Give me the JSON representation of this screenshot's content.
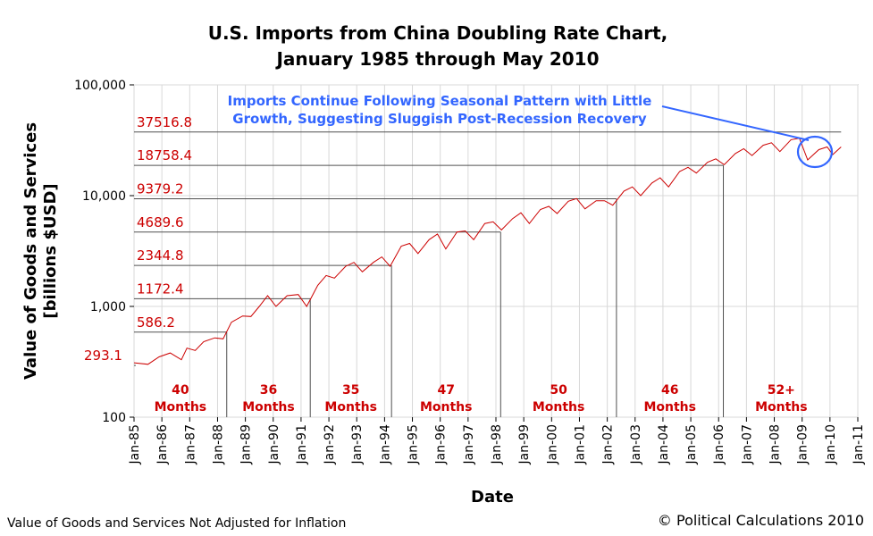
{
  "chart_data": {
    "type": "line",
    "title": "U.S. Imports from China Doubling Rate Chart,",
    "subtitle": "January 1985 through May 2010",
    "xlabel": "Date",
    "ylabel": "Value of Goods and Services",
    "ylabel2": "[billions $USD]",
    "yscale": "log",
    "ylim": [
      100,
      100000
    ],
    "xlim": [
      "Jan-85",
      "Jan-11"
    ],
    "yticks": [
      "100",
      "1,000",
      "10,000",
      "100,000"
    ],
    "ytick_values": [
      100,
      1000,
      10000,
      100000
    ],
    "xticks": [
      "Jan-85",
      "Jan-86",
      "Jan-87",
      "Jan-88",
      "Jan-89",
      "Jan-90",
      "Jan-91",
      "Jan-92",
      "Jan-93",
      "Jan-94",
      "Jan-95",
      "Jan-96",
      "Jan-97",
      "Jan-98",
      "Jan-99",
      "Jan-00",
      "Jan-01",
      "Jan-02",
      "Jan-03",
      "Jan-04",
      "Jan-05",
      "Jan-06",
      "Jan-07",
      "Jan-08",
      "Jan-09",
      "Jan-10",
      "Jan-11"
    ],
    "grid": true,
    "series": [
      {
        "name": "U.S. Imports from China",
        "color": "#cc0000",
        "points": [
          [
            1985.0,
            310
          ],
          [
            1985.5,
            300
          ],
          [
            1985.9,
            350
          ],
          [
            1986.3,
            380
          ],
          [
            1986.7,
            330
          ],
          [
            1986.9,
            420
          ],
          [
            1987.2,
            400
          ],
          [
            1987.5,
            480
          ],
          [
            1987.9,
            520
          ],
          [
            1988.2,
            510
          ],
          [
            1988.5,
            720
          ],
          [
            1988.9,
            820
          ],
          [
            1989.2,
            810
          ],
          [
            1989.5,
            1000
          ],
          [
            1989.8,
            1250
          ],
          [
            1990.1,
            1000
          ],
          [
            1990.5,
            1250
          ],
          [
            1990.9,
            1280
          ],
          [
            1991.2,
            1000
          ],
          [
            1991.6,
            1550
          ],
          [
            1991.9,
            1900
          ],
          [
            1992.2,
            1800
          ],
          [
            1992.6,
            2300
          ],
          [
            1992.9,
            2500
          ],
          [
            1993.2,
            2050
          ],
          [
            1993.6,
            2500
          ],
          [
            1993.9,
            2800
          ],
          [
            1994.2,
            2300
          ],
          [
            1994.6,
            3500
          ],
          [
            1994.9,
            3700
          ],
          [
            1995.2,
            3000
          ],
          [
            1995.6,
            4000
          ],
          [
            1995.9,
            4500
          ],
          [
            1996.2,
            3300
          ],
          [
            1996.6,
            4700
          ],
          [
            1996.9,
            4800
          ],
          [
            1997.2,
            4000
          ],
          [
            1997.6,
            5600
          ],
          [
            1997.9,
            5800
          ],
          [
            1998.2,
            4900
          ],
          [
            1998.6,
            6200
          ],
          [
            1998.9,
            7000
          ],
          [
            1999.2,
            5600
          ],
          [
            1999.6,
            7500
          ],
          [
            1999.9,
            8000
          ],
          [
            2000.2,
            6900
          ],
          [
            2000.6,
            8900
          ],
          [
            2000.9,
            9400
          ],
          [
            2001.2,
            7600
          ],
          [
            2001.6,
            9000
          ],
          [
            2001.9,
            9000
          ],
          [
            2002.2,
            8200
          ],
          [
            2002.6,
            11000
          ],
          [
            2002.9,
            12000
          ],
          [
            2003.2,
            10000
          ],
          [
            2003.6,
            13000
          ],
          [
            2003.9,
            14500
          ],
          [
            2004.2,
            12000
          ],
          [
            2004.6,
            16500
          ],
          [
            2004.9,
            18000
          ],
          [
            2005.2,
            16000
          ],
          [
            2005.6,
            20000
          ],
          [
            2005.9,
            21500
          ],
          [
            2006.2,
            19000
          ],
          [
            2006.6,
            24000
          ],
          [
            2006.9,
            26500
          ],
          [
            2007.2,
            23000
          ],
          [
            2007.6,
            28500
          ],
          [
            2007.9,
            30000
          ],
          [
            2008.2,
            25000
          ],
          [
            2008.6,
            32000
          ],
          [
            2008.9,
            33000
          ],
          [
            2009.2,
            21000
          ],
          [
            2009.6,
            26000
          ],
          [
            2009.9,
            27500
          ],
          [
            2010.1,
            23500
          ],
          [
            2010.4,
            27500
          ]
        ]
      }
    ],
    "reference_lines": [
      {
        "label": "293.1",
        "value": 293.1
      },
      {
        "label": "586.2",
        "value": 586.2
      },
      {
        "label": "1172.4",
        "value": 1172.4
      },
      {
        "label": "2344.8",
        "value": 2344.8
      },
      {
        "label": "4689.6",
        "value": 4689.6
      },
      {
        "label": "9379.2",
        "value": 9379.2
      },
      {
        "label": "18758.4",
        "value": 18758.4
      },
      {
        "label": "37516.8",
        "value": 37516.8
      }
    ],
    "doubling_periods": [
      {
        "count": "40",
        "unit": "Months",
        "start": 1985.0,
        "end": 1988.33
      },
      {
        "count": "36",
        "unit": "Months",
        "start": 1988.33,
        "end": 1991.33
      },
      {
        "count": "35",
        "unit": "Months",
        "start": 1991.33,
        "end": 1994.25
      },
      {
        "count": "47",
        "unit": "Months",
        "start": 1994.25,
        "end": 1998.17
      },
      {
        "count": "50",
        "unit": "Months",
        "start": 1998.17,
        "end": 2002.33
      },
      {
        "count": "46",
        "unit": "Months",
        "start": 2002.33,
        "end": 2006.17
      },
      {
        "count": "52+",
        "unit": "Months",
        "start": 2006.17,
        "end": 2010.33
      }
    ],
    "annotation": {
      "line1": "Imports Continue Following Seasonal Pattern with Little",
      "line2": "Growth, Suggesting Sluggish Post-Recession Recovery",
      "color": "#3366ff"
    }
  },
  "footnote": "Value of Goods and Services Not Adjusted for Inflation",
  "credit": "© Political Calculations 2010"
}
